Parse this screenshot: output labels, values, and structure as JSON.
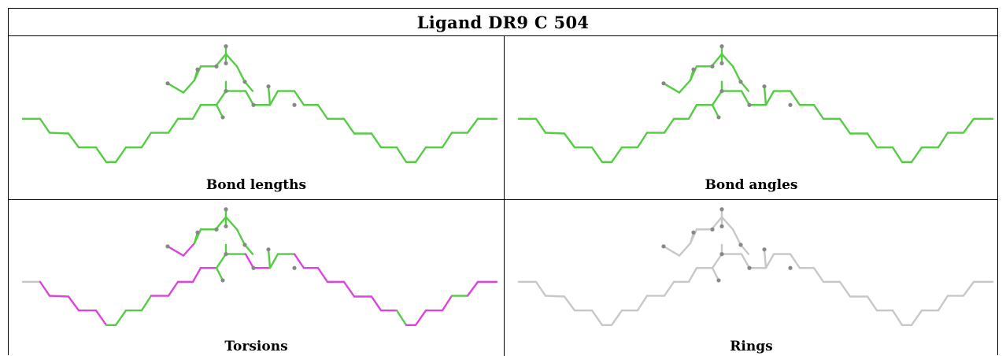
{
  "title": "Ligand DR9 C 504",
  "panels": [
    {
      "caption": "Bond lengths",
      "scheme": "green"
    },
    {
      "caption": "Bond angles",
      "scheme": "green"
    },
    {
      "caption": "Torsions",
      "scheme": "torsion"
    },
    {
      "caption": "Rings",
      "scheme": "grey"
    }
  ],
  "colors": {
    "good": "#55cc44",
    "outlier": "#dd44dd",
    "neutral": "#c8c8c8",
    "atom": "#888888"
  }
}
